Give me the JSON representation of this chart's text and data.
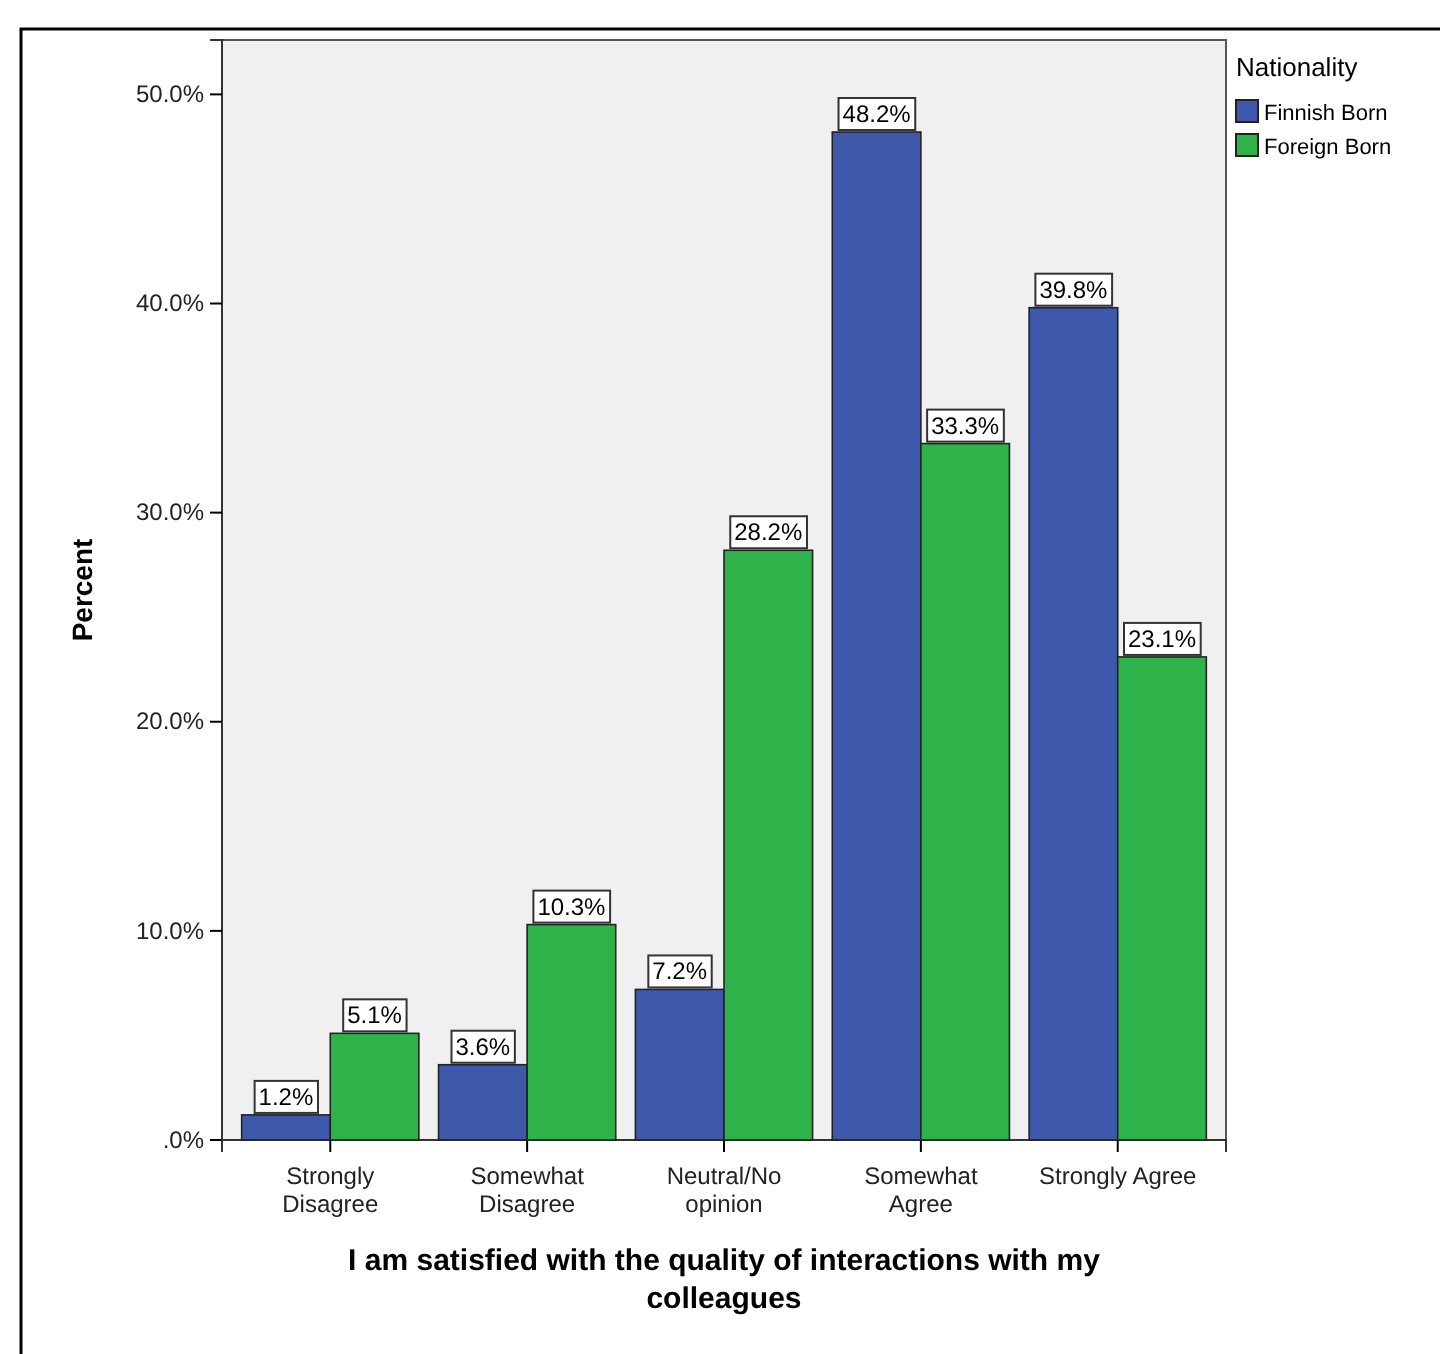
{
  "chart_data": {
    "type": "bar",
    "xlabel": "I am satisfied with the quality of interactions with my colleagues",
    "ylabel": "Percent",
    "legend_title": "Nationality",
    "legend": "right",
    "categories": [
      "Strongly Disagree",
      "Somewhat Disagree",
      "Neutral/No opinion",
      "Somewhat Agree",
      "Strongly Agree"
    ],
    "series": [
      {
        "name": "Finnish Born",
        "color": "#3e58ac",
        "values": [
          1.2,
          3.6,
          7.2,
          48.2,
          39.8
        ],
        "value_labels": [
          "1.2%",
          "3.6%",
          "7.2%",
          "48.2%",
          "39.8%"
        ]
      },
      {
        "name": "Foreign Born",
        "color": "#2db34a",
        "values": [
          5.1,
          10.3,
          28.2,
          33.3,
          23.1
        ],
        "value_labels": [
          "5.1%",
          "10.3%",
          "28.2%",
          "33.3%",
          "23.1%"
        ]
      }
    ],
    "ylim": [
      0,
      52.6
    ],
    "yticks": [
      {
        "value": 0,
        "label": ".0%"
      },
      {
        "value": 10,
        "label": "10.0%"
      },
      {
        "value": 20,
        "label": "20.0%"
      },
      {
        "value": 30,
        "label": "30.0%"
      },
      {
        "value": 40,
        "label": "40.0%"
      },
      {
        "value": 50,
        "label": "50.0%"
      }
    ],
    "grid": false
  }
}
